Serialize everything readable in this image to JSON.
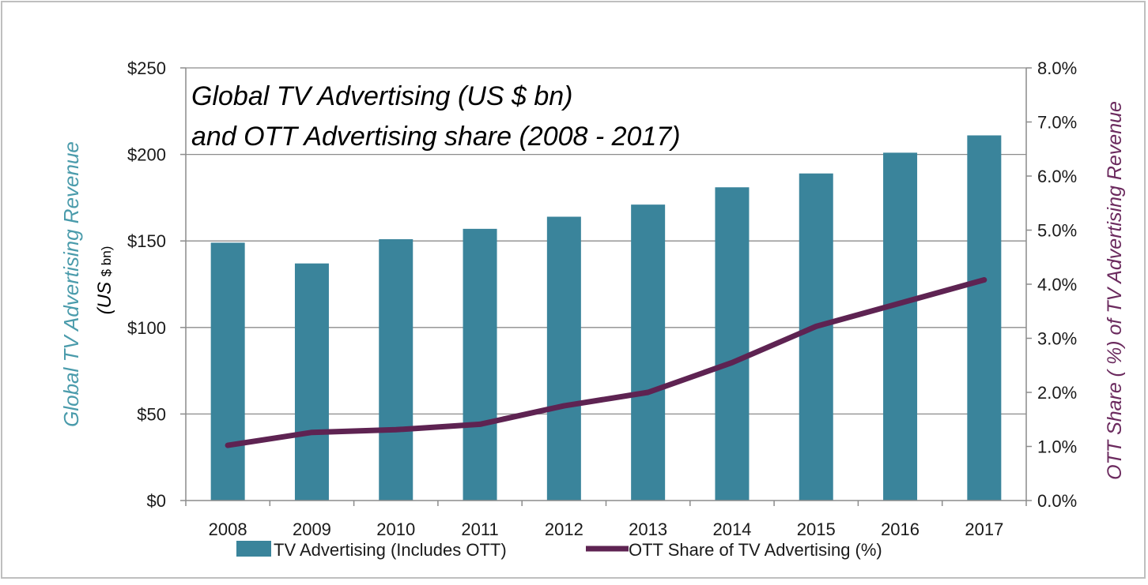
{
  "chart_data": {
    "type": "bar",
    "title_line1": "Global TV Advertising (US $ bn)",
    "title_line2": "and OTT Advertising share (2008 - 2017)",
    "ylabel_left_main": "Global  TV Advertising Revenue",
    "ylabel_left_unit_a": "(US ",
    "ylabel_left_unit_b": "$ bn)",
    "ylabel_right": "OTT Share ( %) of TV Advertising Revenue",
    "categories": [
      "2008",
      "2009",
      "2010",
      "2011",
      "2012",
      "2013",
      "2014",
      "2015",
      "2016",
      "2017"
    ],
    "series": [
      {
        "name": "TV Advertising (Includes OTT)",
        "type": "bar",
        "axis": "left",
        "color": "#3a849b",
        "values": [
          149,
          137,
          151,
          157,
          164,
          171,
          181,
          189,
          201,
          211
        ]
      },
      {
        "name": "OTT Share of TV Advertising  (%)",
        "type": "line",
        "axis": "right",
        "color": "#5e2352",
        "values": [
          1.02,
          1.26,
          1.31,
          1.41,
          1.75,
          2.0,
          2.55,
          3.22,
          3.65,
          4.08
        ]
      }
    ],
    "y_left": {
      "min": 0,
      "max": 250,
      "ticks": [
        0,
        50,
        100,
        150,
        200,
        250
      ],
      "tick_labels": [
        "$0",
        "$50",
        "$100",
        "$150",
        "$200",
        "$250"
      ]
    },
    "y_right": {
      "min": 0,
      "max": 8,
      "ticks": [
        0,
        1,
        2,
        3,
        4,
        5,
        6,
        7,
        8
      ],
      "tick_labels": [
        "0.0%",
        "1.0%",
        "2.0%",
        "3.0%",
        "4.0%",
        "5.0%",
        "6.0%",
        "7.0%",
        "8.0%"
      ]
    },
    "grid": true,
    "legend_position": "bottom",
    "colors": {
      "left_axis_title": "#4a9bab",
      "right_axis_title": "#6b2a5e",
      "grid": "#8c8c8c"
    }
  }
}
